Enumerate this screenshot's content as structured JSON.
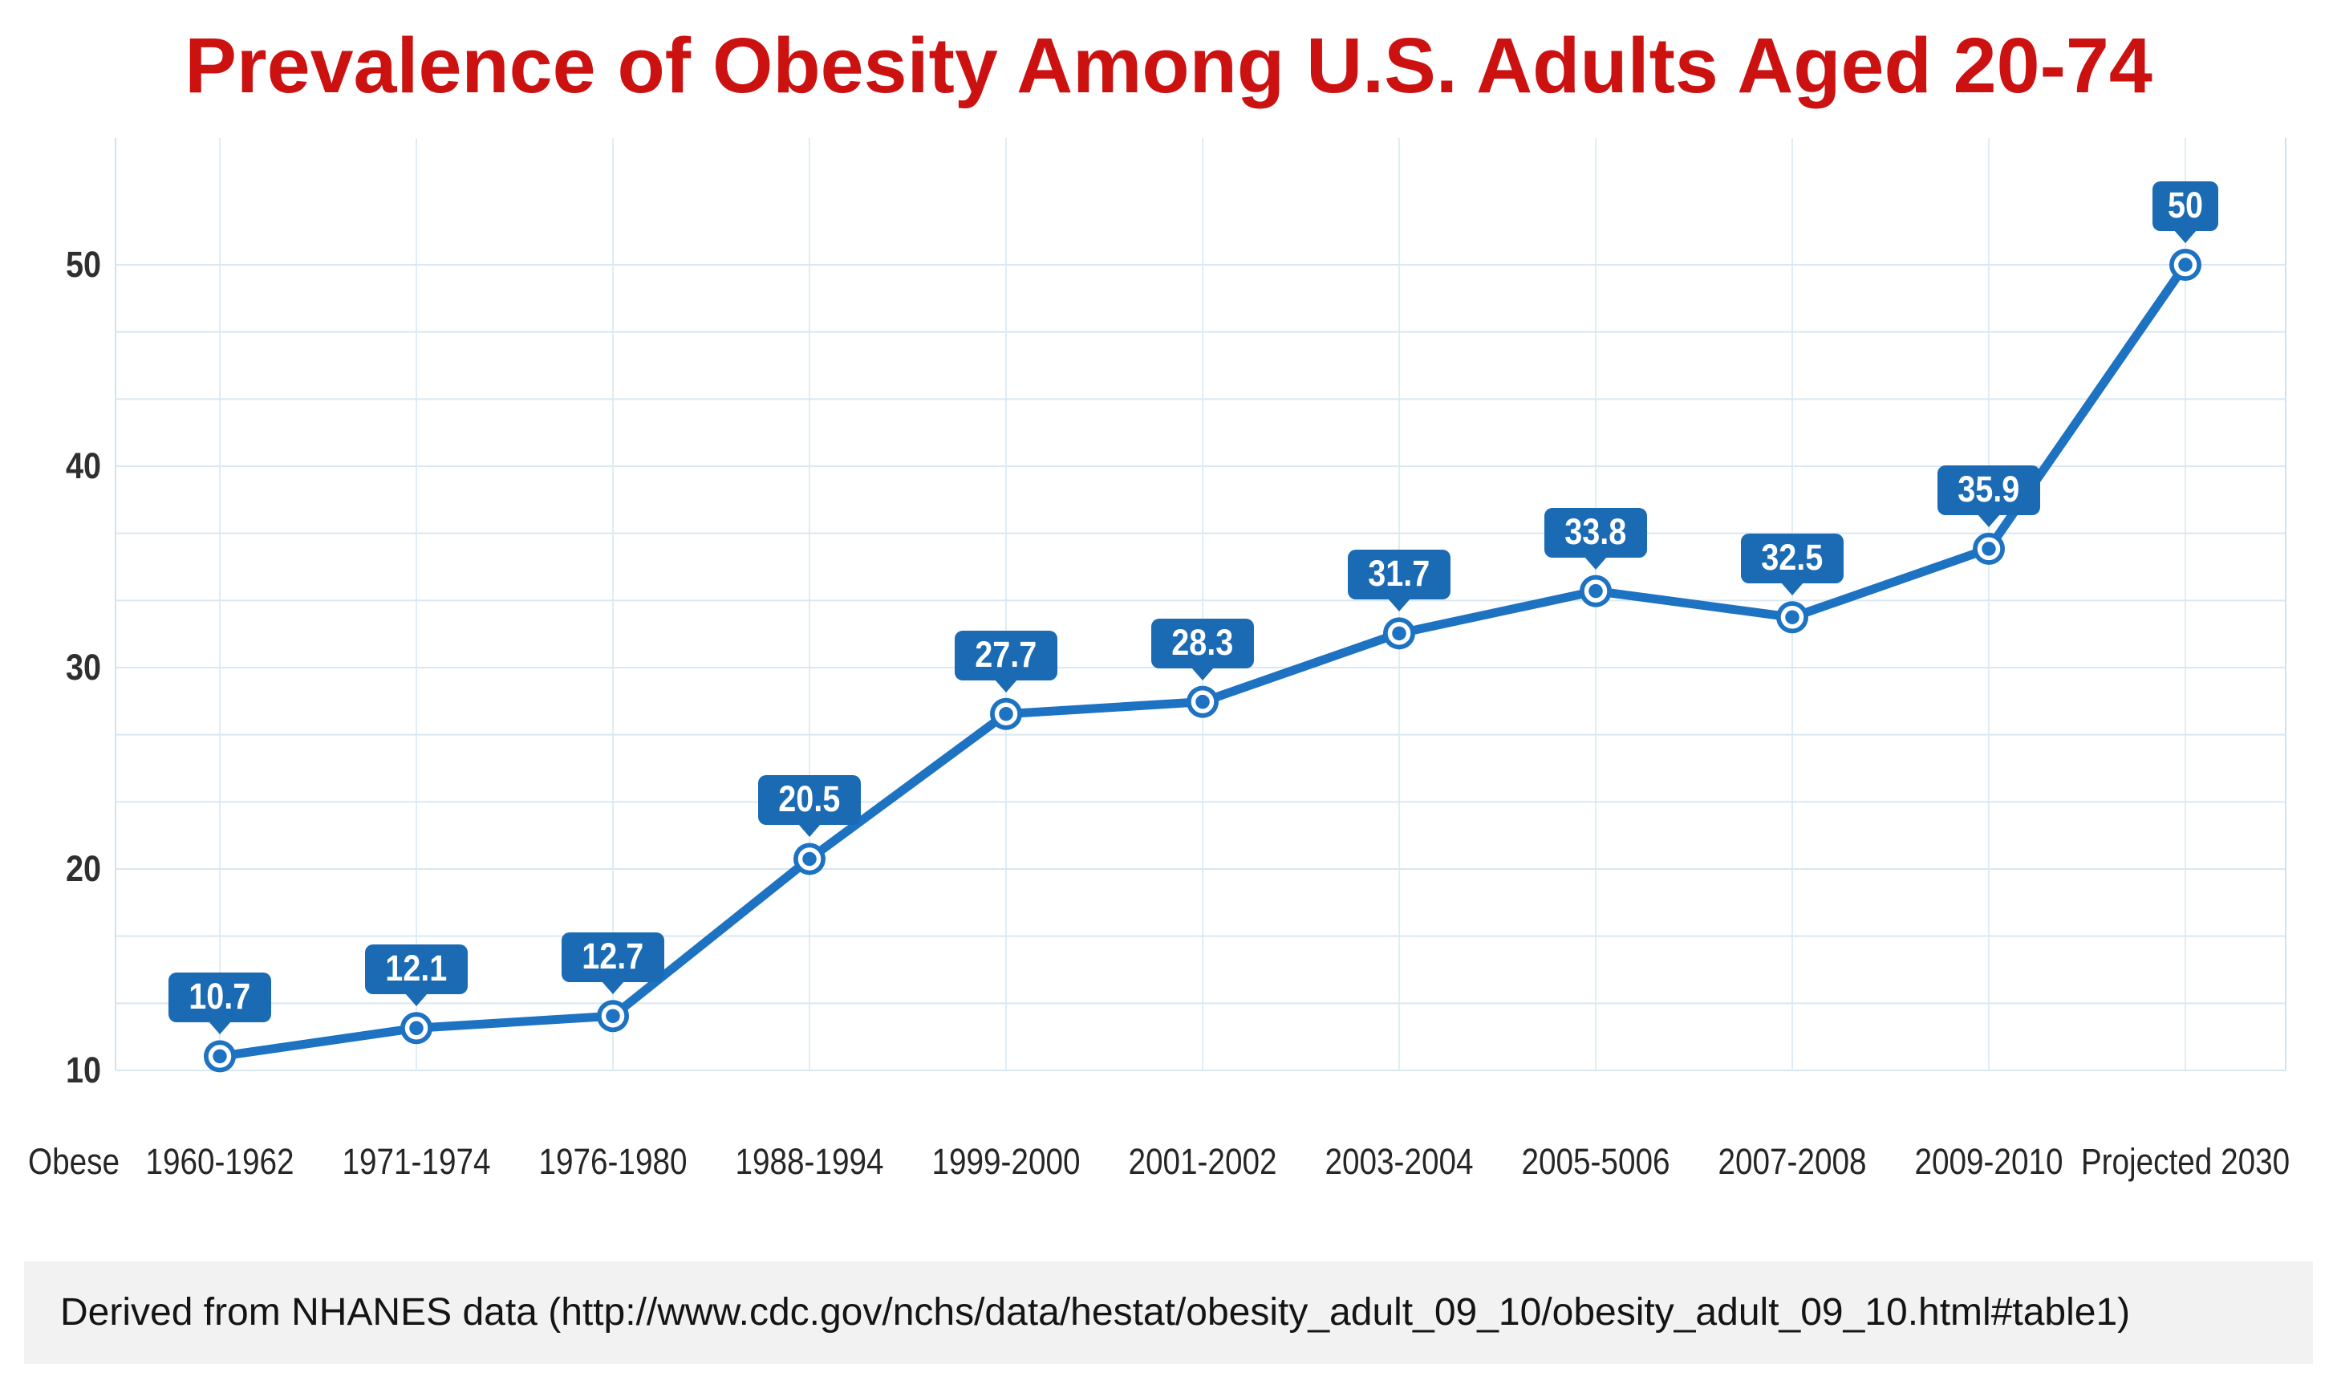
{
  "title": "Prevalence of Obesity Among U.S. Adults Aged 20-74",
  "footer": {
    "text": "Derived from NHANES data (http://www.cdc.gov/nchs/data/hestat/obesity_adult_09_10/obesity_adult_09_10.html#table1)"
  },
  "colors": {
    "title_red": "#cc1111",
    "line_blue": "#1d72c2",
    "callout_blue": "#1a6ab4",
    "marker_ring_white": "#ffffff",
    "grid_horizontal": "#d9e8f1",
    "grid_vertical": "#e0edf4",
    "plot_border": "#cfe2ee",
    "axis_text": "#2f2f2f",
    "footer_bg": "#f2f2f2"
  },
  "chart_data": {
    "type": "line",
    "series_label": "Obese",
    "categories": [
      "1960-1962",
      "1971-1974",
      "1976-1980",
      "1988-1994",
      "1999-2000",
      "2001-2002",
      "2003-2004",
      "2005-5006",
      "2007-2008",
      "2009-2010",
      "Projected 2030"
    ],
    "values": [
      10.7,
      12.1,
      12.7,
      20.5,
      27.7,
      28.3,
      31.7,
      33.8,
      32.5,
      35.9,
      50
    ],
    "point_labels": [
      "10.7",
      "12.1",
      "12.7",
      "20.5",
      "27.7",
      "28.3",
      "31.7",
      "33.8",
      "32.5",
      "35.9",
      "50"
    ],
    "title": "Prevalence of Obesity Among U.S. Adults Aged 20-74",
    "xlabel": "",
    "ylabel": "",
    "yticks": [
      10,
      20,
      30,
      40,
      50
    ],
    "ylim": [
      10,
      50
    ],
    "grid": "both",
    "legend": "none",
    "marker_style": "ring",
    "data_label_style": "callout-bubble"
  }
}
